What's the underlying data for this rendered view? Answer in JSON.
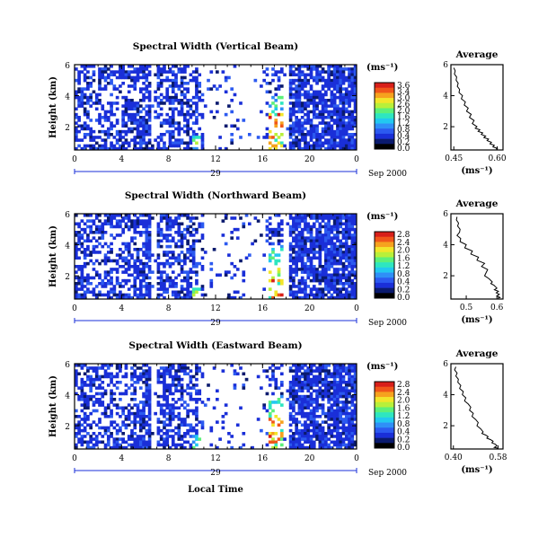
{
  "figure": {
    "date_label": "Sep 2000",
    "bottom_xlabel": "Local Time"
  },
  "chart_data": [
    {
      "type": "heatmap",
      "title": "Spectral Width (Vertical Beam)",
      "ylabel": "Height (km)",
      "xlabel": "",
      "x_ticks": [
        "0",
        "4",
        "8",
        "12",
        "16",
        "20",
        "0"
      ],
      "day_label": "29",
      "y_ticks": [
        "6",
        "4",
        "2"
      ],
      "xlim": [
        0,
        24
      ],
      "ylim": [
        0.5,
        6
      ],
      "colorbar": {
        "unit": "(ms⁻¹)",
        "ticks": [
          "3.6",
          "3.4",
          "3.0",
          "2.6",
          "2.0",
          "1.6",
          "1.2",
          "0.8",
          "0.4",
          "0.2",
          "0.0"
        ]
      }
    },
    {
      "type": "line",
      "title": "Average",
      "xlabel": "(ms⁻¹)",
      "x_ticks": [
        "0.45",
        "0.60"
      ],
      "y_ticks": [
        "6",
        "4",
        "2"
      ],
      "xlim": [
        0.44,
        0.62
      ],
      "ylim": [
        0.5,
        6
      ],
      "x": [
        0.45,
        0.455,
        0.452,
        0.46,
        0.458,
        0.465,
        0.462,
        0.47,
        0.468,
        0.48,
        0.476,
        0.49,
        0.486,
        0.5,
        0.494,
        0.51,
        0.504,
        0.52,
        0.514,
        0.53,
        0.524,
        0.54,
        0.534,
        0.55,
        0.545,
        0.56,
        0.554,
        0.57,
        0.565,
        0.58,
        0.575,
        0.59,
        0.585,
        0.6,
        0.596
      ],
      "y": [
        5.8,
        5.6,
        5.4,
        5.2,
        5.0,
        4.8,
        4.6,
        4.4,
        4.2,
        4.0,
        3.8,
        3.6,
        3.4,
        3.2,
        3.0,
        2.8,
        2.6,
        2.4,
        2.2,
        2.0,
        1.9,
        1.8,
        1.7,
        1.6,
        1.5,
        1.4,
        1.3,
        1.2,
        1.1,
        1.0,
        0.9,
        0.8,
        0.7,
        0.6,
        0.55
      ]
    },
    {
      "type": "heatmap",
      "title": "Spectral Width (Northward Beam)",
      "ylabel": "Height (km)",
      "xlabel": "",
      "x_ticks": [
        "0",
        "4",
        "8",
        "12",
        "16",
        "20",
        "0"
      ],
      "day_label": "29",
      "y_ticks": [
        "6",
        "4",
        "2"
      ],
      "xlim": [
        0,
        24
      ],
      "ylim": [
        0.5,
        6
      ],
      "colorbar": {
        "unit": "(ms⁻¹)",
        "ticks": [
          "2.8",
          "2.4",
          "2.0",
          "1.6",
          "1.2",
          "0.8",
          "0.4",
          "0.2",
          "0.0"
        ]
      }
    },
    {
      "type": "line",
      "title": "Average",
      "xlabel": "(ms⁻¹)",
      "x_ticks": [
        "0.5",
        "0.6"
      ],
      "y_ticks": [
        "6",
        "4",
        "2"
      ],
      "xlim": [
        0.45,
        0.62
      ],
      "ylim": [
        0.5,
        6
      ],
      "x": [
        0.47,
        0.468,
        0.475,
        0.472,
        0.48,
        0.478,
        0.47,
        0.482,
        0.48,
        0.5,
        0.495,
        0.52,
        0.515,
        0.54,
        0.535,
        0.56,
        0.55,
        0.57,
        0.565,
        0.56,
        0.575,
        0.585,
        0.58,
        0.59,
        0.595,
        0.6,
        0.592,
        0.605,
        0.598,
        0.608,
        0.6,
        0.61,
        0.603
      ],
      "y": [
        5.8,
        5.6,
        5.4,
        5.2,
        5.0,
        4.8,
        4.6,
        4.4,
        4.2,
        4.0,
        3.8,
        3.6,
        3.4,
        3.2,
        3.0,
        2.8,
        2.6,
        2.4,
        2.2,
        2.0,
        1.8,
        1.6,
        1.5,
        1.4,
        1.3,
        1.2,
        1.1,
        1.0,
        0.9,
        0.8,
        0.7,
        0.6,
        0.55
      ]
    },
    {
      "type": "heatmap",
      "title": "Spectral Width (Eastward Beam)",
      "ylabel": "Height (km)",
      "xlabel": "",
      "x_ticks": [
        "0",
        "4",
        "8",
        "12",
        "16",
        "20",
        "0"
      ],
      "day_label": "29",
      "y_ticks": [
        "6",
        "4",
        "2"
      ],
      "xlim": [
        0,
        24
      ],
      "ylim": [
        0.5,
        6
      ],
      "colorbar": {
        "unit": "(ms⁻¹)",
        "ticks": [
          "2.8",
          "2.4",
          "2.0",
          "1.6",
          "1.2",
          "0.8",
          "0.4",
          "0.2",
          "0.0"
        ]
      }
    },
    {
      "type": "line",
      "title": "Average",
      "xlabel": "(ms⁻¹)",
      "x_ticks": [
        "0.40",
        "0.58"
      ],
      "y_ticks": [
        "6",
        "4",
        "2"
      ],
      "xlim": [
        0.39,
        0.6
      ],
      "ylim": [
        0.5,
        6
      ],
      "x": [
        0.41,
        0.405,
        0.415,
        0.41,
        0.42,
        0.418,
        0.43,
        0.425,
        0.44,
        0.436,
        0.45,
        0.445,
        0.46,
        0.47,
        0.465,
        0.48,
        0.475,
        0.49,
        0.5,
        0.495,
        0.51,
        0.52,
        0.515,
        0.53,
        0.54,
        0.535,
        0.55,
        0.56,
        0.555,
        0.57,
        0.575,
        0.565,
        0.58
      ],
      "y": [
        5.8,
        5.6,
        5.4,
        5.2,
        5.0,
        4.8,
        4.6,
        4.4,
        4.2,
        4.0,
        3.8,
        3.6,
        3.4,
        3.2,
        3.0,
        2.8,
        2.6,
        2.4,
        2.2,
        2.0,
        1.8,
        1.6,
        1.5,
        1.4,
        1.3,
        1.2,
        1.1,
        1.0,
        0.9,
        0.8,
        0.7,
        0.6,
        0.55
      ]
    }
  ]
}
